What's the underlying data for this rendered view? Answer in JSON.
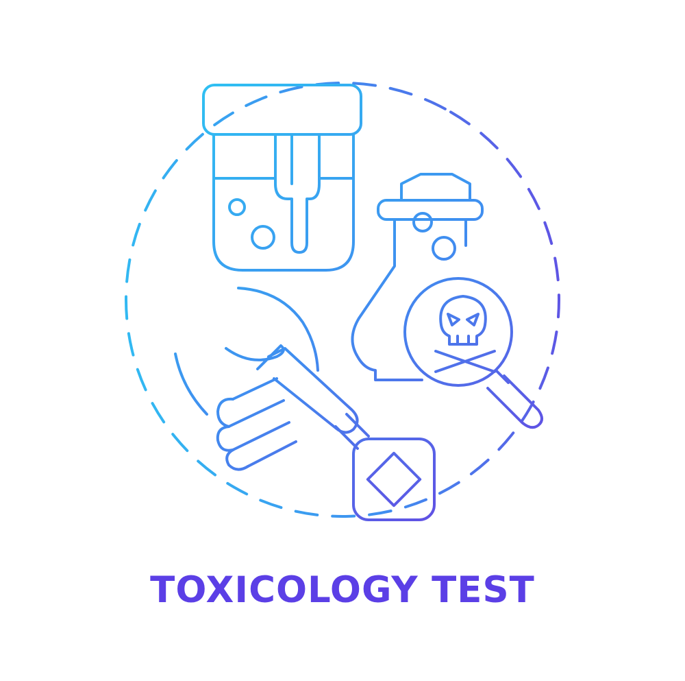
{
  "icon": {
    "name": "toxicology-test-concept-icon",
    "elements": [
      "urine-sample-cup-icon",
      "poison-flask-icon",
      "skull-crossbones-icon",
      "magnifying-glass-icon",
      "hand-icon",
      "test-strip-icon"
    ]
  },
  "caption": {
    "text": "TOXICOLOGY TEST"
  },
  "colors": {
    "gradient_start": "#2ec3f2",
    "gradient_mid": "#3f8ff0",
    "gradient_end": "#6a3fe0",
    "caption": "#5b3fe6",
    "background": "#ffffff"
  }
}
